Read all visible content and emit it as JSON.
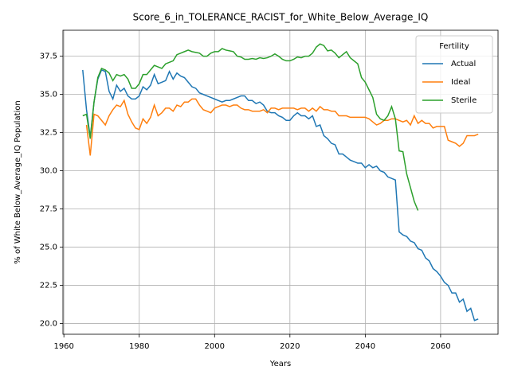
{
  "chart_data": {
    "type": "line",
    "title": "Score_6_in_TOLERANCE_RACIST_for_White_Below_Average_IQ",
    "xlabel": "Years",
    "ylabel": "% of White Below_Average_IQ Population",
    "legend_title": "Fertility",
    "legend": "upper right",
    "grid": true,
    "x": [
      1965,
      1966,
      1967,
      1968,
      1969,
      1970,
      1971,
      1972,
      1973,
      1974,
      1975,
      1976,
      1977,
      1978,
      1979,
      1980,
      1981,
      1982,
      1983,
      1984,
      1985,
      1986,
      1987,
      1988,
      1989,
      1990,
      1991,
      1992,
      1993,
      1994,
      1995,
      1996,
      1997,
      1998,
      1999,
      2000,
      2001,
      2002,
      2003,
      2004,
      2005,
      2006,
      2007,
      2008,
      2009,
      2010,
      2011,
      2012,
      2013,
      2014,
      2015,
      2016,
      2017,
      2018,
      2019,
      2020,
      2021,
      2022,
      2023,
      2024,
      2025,
      2026,
      2027,
      2028,
      2029,
      2030,
      2031,
      2032,
      2033,
      2034,
      2035,
      2036,
      2037,
      2038,
      2039,
      2040,
      2041,
      2042,
      2043,
      2044,
      2045,
      2046,
      2047,
      2048,
      2049,
      2050,
      2051,
      2052,
      2053,
      2054,
      2055,
      2056,
      2057,
      2058,
      2059,
      2060,
      2061,
      2062,
      2063,
      2064,
      2065,
      2066,
      2067,
      2068,
      2069,
      2070
    ],
    "series": [
      {
        "name": "Actual",
        "color": "#1f77b4",
        "values": [
          36.6,
          34.0,
          32.2,
          34.5,
          36.0,
          36.6,
          36.5,
          35.2,
          34.7,
          35.6,
          35.2,
          35.4,
          34.9,
          34.7,
          34.7,
          34.9,
          35.5,
          35.3,
          35.6,
          36.3,
          35.7,
          35.8,
          35.9,
          36.5,
          36.0,
          36.4,
          36.2,
          36.1,
          35.8,
          35.5,
          35.4,
          35.1,
          35.0,
          34.9,
          34.8,
          34.7,
          34.6,
          34.5,
          34.6,
          34.6,
          34.7,
          34.8,
          34.9,
          34.9,
          34.6,
          34.6,
          34.4,
          34.5,
          34.3,
          33.9,
          33.8,
          33.8,
          33.6,
          33.5,
          33.3,
          33.3,
          33.6,
          33.8,
          33.6,
          33.6,
          33.4,
          33.6,
          32.9,
          33.0,
          32.3,
          32.1,
          31.8,
          31.7,
          31.1,
          31.1,
          30.9,
          30.7,
          30.6,
          30.5,
          30.5,
          30.2,
          30.4,
          30.2,
          30.3,
          30.0,
          29.9,
          29.6,
          29.5,
          29.4,
          26.0,
          25.8,
          25.7,
          25.4,
          25.3,
          24.9,
          24.8,
          24.3,
          24.1,
          23.6,
          23.4,
          23.1,
          22.7,
          22.5,
          22.0,
          22.0,
          21.4,
          21.6,
          20.8,
          21.0,
          20.2,
          20.3
        ]
      },
      {
        "name": "Ideal",
        "color": "#ff7f0e",
        "values": [
          null,
          33.0,
          31.0,
          33.7,
          33.6,
          33.3,
          33.0,
          33.6,
          34.0,
          34.3,
          34.2,
          34.6,
          33.7,
          33.2,
          32.8,
          32.7,
          33.4,
          33.1,
          33.5,
          34.3,
          33.6,
          33.8,
          34.1,
          34.1,
          33.9,
          34.3,
          34.2,
          34.5,
          34.5,
          34.7,
          34.7,
          34.3,
          34.0,
          33.9,
          33.8,
          34.1,
          34.2,
          34.3,
          34.3,
          34.2,
          34.3,
          34.3,
          34.1,
          34.0,
          34.0,
          33.9,
          33.9,
          33.9,
          34.0,
          33.8,
          34.1,
          34.1,
          34.0,
          34.1,
          34.1,
          34.1,
          34.1,
          34.0,
          34.1,
          34.1,
          33.9,
          34.1,
          33.9,
          34.2,
          34.0,
          34.0,
          33.9,
          33.9,
          33.6,
          33.6,
          33.6,
          33.5,
          33.5,
          33.5,
          33.5,
          33.5,
          33.4,
          33.2,
          33.0,
          33.1,
          33.3,
          33.3,
          33.4,
          33.4,
          33.3,
          33.2,
          33.3,
          33.0,
          33.6,
          33.1,
          33.3,
          33.1,
          33.1,
          32.8,
          32.9,
          32.9,
          32.9,
          32.0,
          31.9,
          31.8,
          31.6,
          31.8,
          32.3,
          32.3,
          32.3,
          32.4
        ]
      },
      {
        "name": "Sterile",
        "color": "#2ca02c",
        "values": [
          33.6,
          33.7,
          32.1,
          34.5,
          36.1,
          36.7,
          36.6,
          36.4,
          35.9,
          36.3,
          36.2,
          36.3,
          36.0,
          35.4,
          35.4,
          35.7,
          36.3,
          36.3,
          36.6,
          36.9,
          36.8,
          36.7,
          37.0,
          37.1,
          37.2,
          37.6,
          37.7,
          37.8,
          37.9,
          37.8,
          37.75,
          37.7,
          37.5,
          37.5,
          37.7,
          37.8,
          37.8,
          38.0,
          37.9,
          37.85,
          37.8,
          37.5,
          37.45,
          37.3,
          37.3,
          37.35,
          37.3,
          37.4,
          37.35,
          37.4,
          37.5,
          37.65,
          37.5,
          37.3,
          37.2,
          37.2,
          37.3,
          37.45,
          37.4,
          37.5,
          37.5,
          37.7,
          38.1,
          38.3,
          38.2,
          37.85,
          37.9,
          37.7,
          37.4,
          37.6,
          37.8,
          37.4,
          37.2,
          37.0,
          36.1,
          35.8,
          35.3,
          34.8,
          33.7,
          33.4,
          33.3,
          33.6,
          34.2,
          33.4,
          31.3,
          31.25,
          29.8,
          28.9,
          28.0,
          27.4,
          null,
          null,
          null,
          null,
          null,
          null,
          null,
          null,
          null,
          null,
          null,
          null,
          null,
          null,
          null,
          null
        ]
      }
    ],
    "xlim": [
      1959.75,
      2075.25
    ],
    "xticks": [
      1960,
      1980,
      2000,
      2020,
      2040,
      2060
    ],
    "ylim": [
      19.3,
      39.2
    ],
    "yticks": [
      {
        "value": 20,
        "label": "20.0"
      },
      22.5,
      {
        "value": 25,
        "label": "25.0"
      },
      27.5,
      {
        "value": 30,
        "label": "30.0"
      },
      32.5,
      {
        "value": 35,
        "label": "35.0"
      },
      37.5
    ]
  }
}
